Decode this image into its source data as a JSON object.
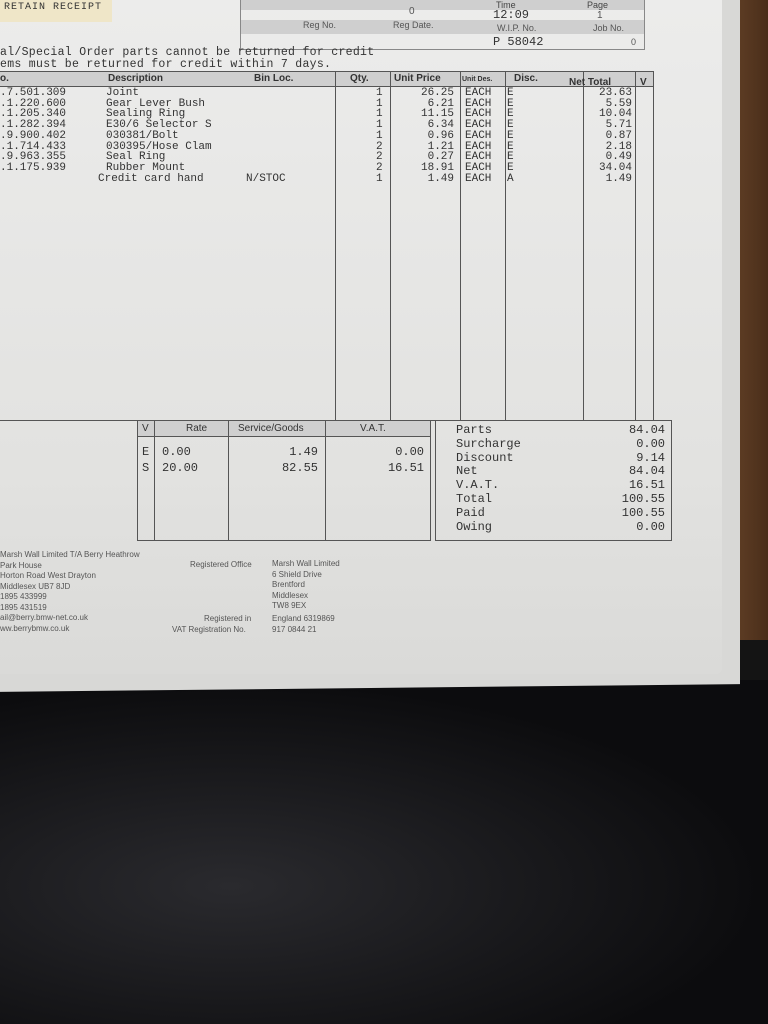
{
  "header": {
    "receipt_label": "RETAIN RECEIPT",
    "time_label": "Time",
    "page_label": "Page",
    "value_0": "0",
    "time": "12:09",
    "page": "1",
    "reg_no_label": "Reg No.",
    "reg_date_label": "Reg Date.",
    "wip_label": "W.I.P. No.",
    "job_label": "Job No.",
    "wip_no": "P 58042",
    "job_no": "0"
  },
  "notes": [
    "al/Special Order parts cannot be returned for credit",
    "ems must be returned for credit within 7 days."
  ],
  "columns": [
    "o.",
    "Description",
    "Bin Loc.",
    "Qty.",
    "Unit Price",
    "Unit Des.",
    "Disc.",
    "Net Total",
    "V"
  ],
  "items": [
    {
      "part": ".7.501.309",
      "desc": "Joint",
      "bin": "",
      "qty": "1",
      "price": "26.25",
      "unit": "EACH",
      "disc": "E",
      "net": "23.63"
    },
    {
      "part": ".1.220.600",
      "desc": "Gear Lever Bush",
      "bin": "",
      "qty": "1",
      "price": "6.21",
      "unit": "EACH",
      "disc": "E",
      "net": "5.59"
    },
    {
      "part": ".1.205.340",
      "desc": "Sealing Ring",
      "bin": "",
      "qty": "1",
      "price": "11.15",
      "unit": "EACH",
      "disc": "E",
      "net": "10.04"
    },
    {
      "part": ".1.282.394",
      "desc": "E30/6 Selector S",
      "bin": "",
      "qty": "1",
      "price": "6.34",
      "unit": "EACH",
      "disc": "E",
      "net": "5.71"
    },
    {
      "part": ".9.900.402",
      "desc": "030381/Bolt",
      "bin": "",
      "qty": "1",
      "price": "0.96",
      "unit": "EACH",
      "disc": "E",
      "net": "0.87"
    },
    {
      "part": ".1.714.433",
      "desc": "030395/Hose Clam",
      "bin": "",
      "qty": "2",
      "price": "1.21",
      "unit": "EACH",
      "disc": "E",
      "net": "2.18"
    },
    {
      "part": ".9.963.355",
      "desc": "Seal Ring",
      "bin": "",
      "qty": "2",
      "price": "0.27",
      "unit": "EACH",
      "disc": "E",
      "net": "0.49"
    },
    {
      "part": ".1.175.939",
      "desc": "Rubber Mount",
      "bin": "",
      "qty": "2",
      "price": "18.91",
      "unit": "EACH",
      "disc": "E",
      "net": "34.04"
    },
    {
      "part": "",
      "desc": "Credit card hand",
      "bin": "N/STOC",
      "qty": "1",
      "price": "1.49",
      "unit": "EACH",
      "disc": "A",
      "net": "1.49"
    }
  ],
  "vat_table": {
    "headers": [
      "V",
      "Rate",
      "Service/Goods",
      "V.A.T."
    ],
    "rows": [
      [
        "E",
        "0.00",
        "1.49",
        "0.00"
      ],
      [
        "S",
        "20.00",
        "82.55",
        "16.51"
      ]
    ]
  },
  "totals": [
    [
      "Parts",
      "84.04"
    ],
    [
      "Surcharge",
      "0.00"
    ],
    [
      "Discount",
      "9.14"
    ],
    [
      "Net",
      "84.04"
    ],
    [
      "V.A.T.",
      "16.51"
    ],
    [
      "Total",
      "100.55"
    ],
    [
      "Paid",
      "100.55"
    ],
    [
      "Owing",
      "0.00"
    ]
  ],
  "footer": {
    "address": [
      "Marsh Wall Limited T/A Berry Heathrow",
      "Park House",
      "Horton Road West Drayton",
      "Middlesex UB7 8JD",
      "1895 433999",
      "1895 431519",
      "ail@berry.bmw-net.co.uk",
      "ww.berrybmw.co.uk"
    ],
    "registered_office_label": "Registered Office",
    "registered_office": [
      "Marsh Wall Limited",
      "6 Shield Drive",
      "Brentford",
      "Middlesex",
      "TW8 9EX"
    ],
    "registered_in_label": "Registered in",
    "registered_in": "England 6319869",
    "vat_reg_label": "VAT Registration No.",
    "vat_reg": "917 0844 21"
  }
}
